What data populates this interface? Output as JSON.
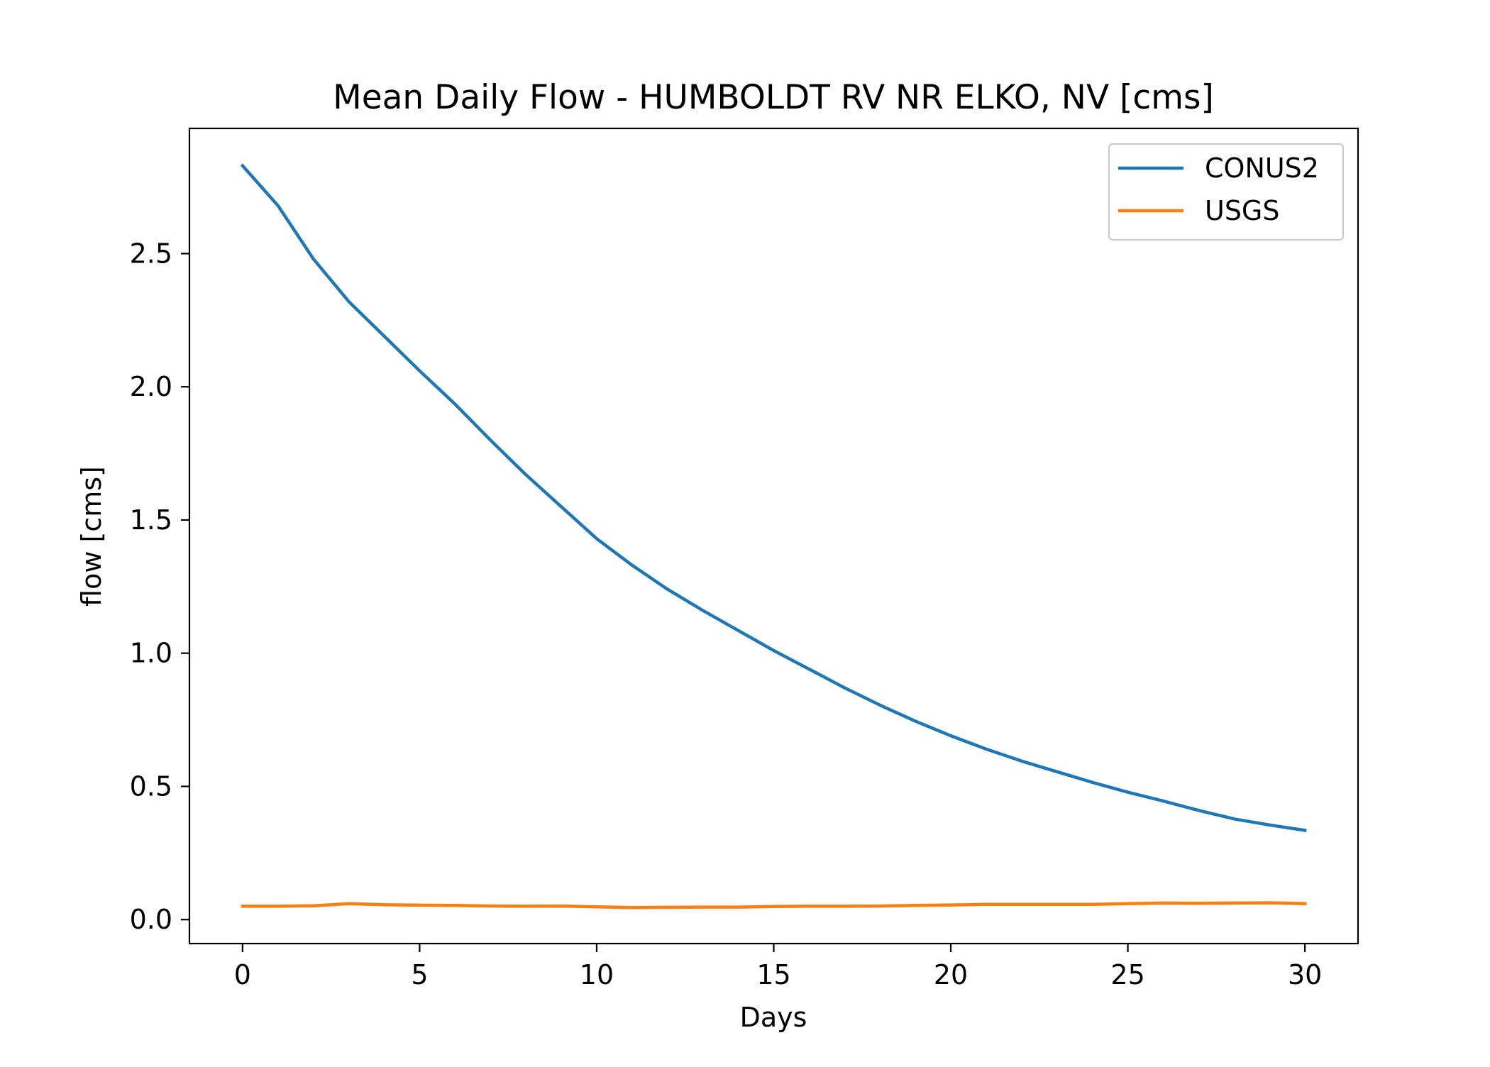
{
  "chart_data": {
    "type": "line",
    "title": "Mean Daily Flow - HUMBOLDT RV NR ELKO, NV [cms]",
    "xlabel": "Days",
    "ylabel": "flow [cms]",
    "xlim": [
      -1.5,
      31.5
    ],
    "ylim": [
      -0.09,
      2.97
    ],
    "xticks": [
      0,
      5,
      10,
      15,
      20,
      25,
      30
    ],
    "xtick_labels": [
      "0",
      "5",
      "10",
      "15",
      "20",
      "25",
      "30"
    ],
    "yticks": [
      0.0,
      0.5,
      1.0,
      1.5,
      2.0,
      2.5
    ],
    "ytick_labels": [
      "0.0",
      "0.5",
      "1.0",
      "1.5",
      "2.0",
      "2.5"
    ],
    "grid": false,
    "legend_position": "upper right",
    "x": [
      0,
      1,
      2,
      3,
      4,
      5,
      6,
      7,
      8,
      9,
      10,
      11,
      12,
      13,
      14,
      15,
      16,
      17,
      18,
      19,
      20,
      21,
      22,
      23,
      24,
      25,
      26,
      27,
      28,
      29,
      30
    ],
    "series": [
      {
        "name": "CONUS2",
        "color": "#1f77b4",
        "values": [
          2.83,
          2.68,
          2.48,
          2.32,
          2.19,
          2.06,
          1.935,
          1.8,
          1.67,
          1.55,
          1.43,
          1.33,
          1.24,
          1.16,
          1.085,
          1.01,
          0.94,
          0.87,
          0.805,
          0.745,
          0.69,
          0.64,
          0.595,
          0.555,
          0.515,
          0.478,
          0.445,
          0.41,
          0.378,
          0.355,
          0.335
        ]
      },
      {
        "name": "USGS",
        "color": "#ff7f0e",
        "values": [
          0.05,
          0.05,
          0.052,
          0.06,
          0.056,
          0.054,
          0.053,
          0.051,
          0.05,
          0.051,
          0.048,
          0.045,
          0.046,
          0.047,
          0.047,
          0.049,
          0.05,
          0.05,
          0.051,
          0.053,
          0.055,
          0.057,
          0.057,
          0.057,
          0.057,
          0.06,
          0.062,
          0.061,
          0.062,
          0.063,
          0.06
        ]
      }
    ]
  }
}
